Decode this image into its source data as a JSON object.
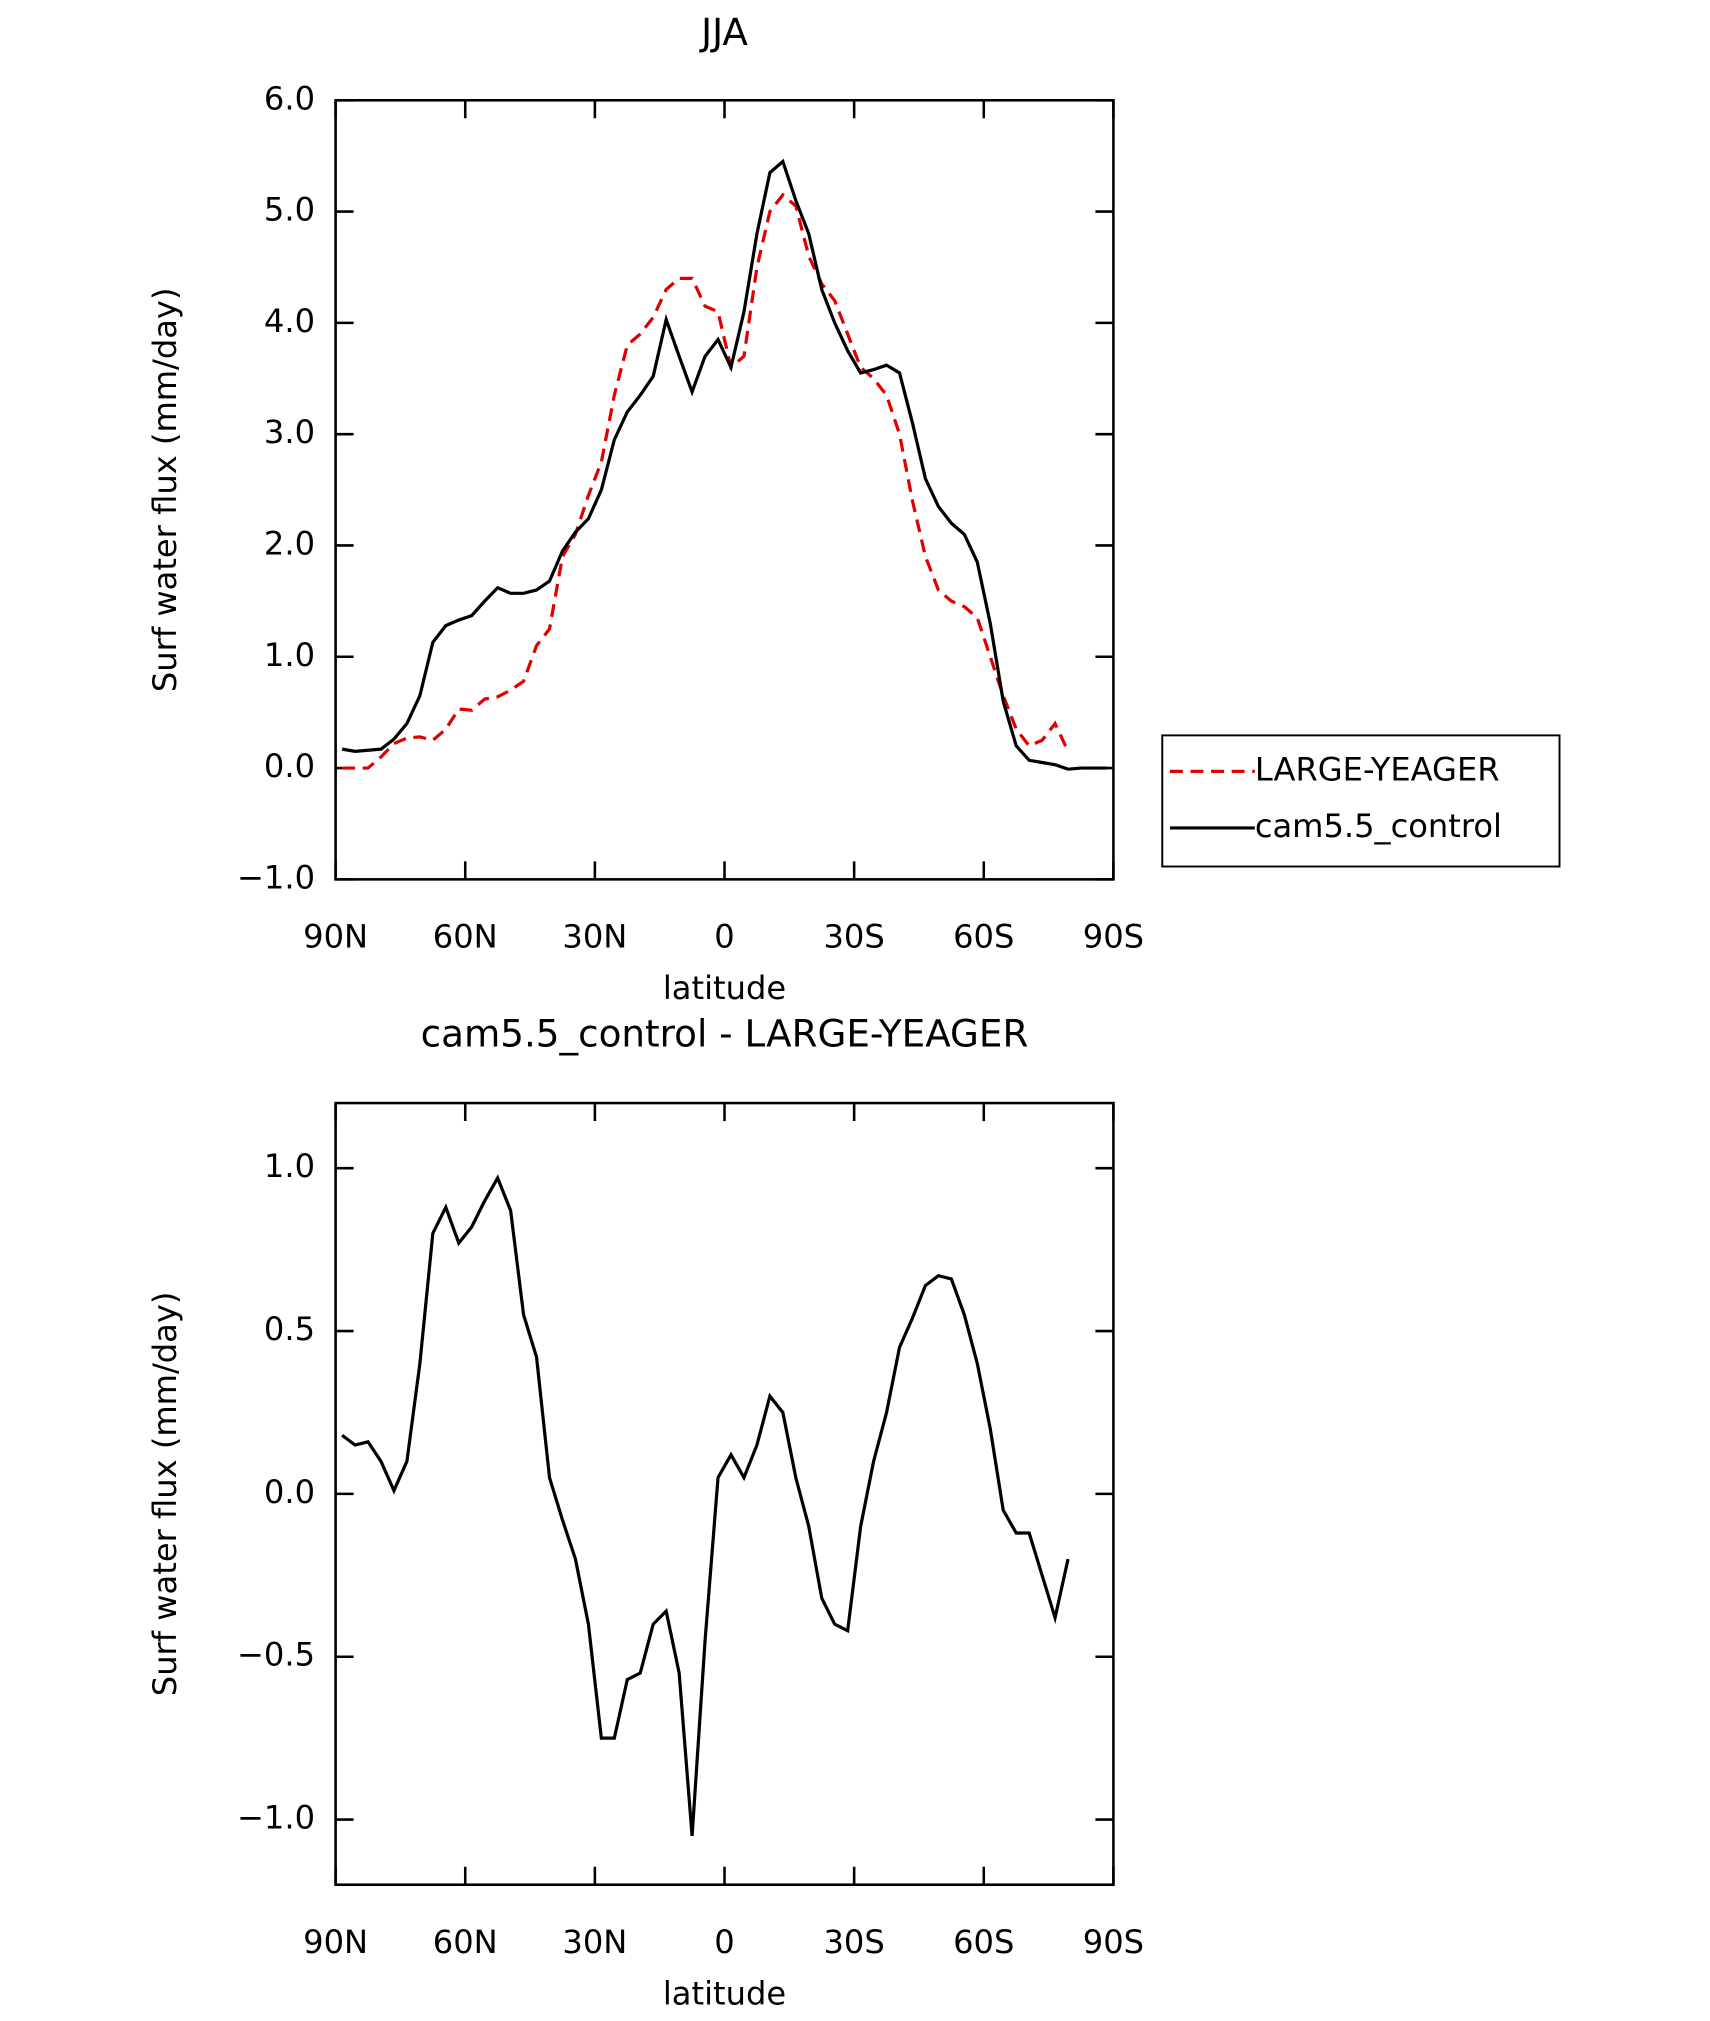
{
  "chart_data": [
    {
      "type": "line",
      "title": "JJA",
      "xlabel": "latitude",
      "ylabel": "Surf water flux (mm/day)",
      "x": [
        88.5,
        85.5,
        82.5,
        79.5,
        76.5,
        73.5,
        70.5,
        67.5,
        64.5,
        61.5,
        58.5,
        55.5,
        52.5,
        49.5,
        46.5,
        43.5,
        40.5,
        37.5,
        34.5,
        31.5,
        28.5,
        25.5,
        22.5,
        19.5,
        16.5,
        13.5,
        10.5,
        7.5,
        4.5,
        1.5,
        -1.5,
        -4.5,
        -7.5,
        -10.5,
        -13.5,
        -16.5,
        -19.5,
        -22.5,
        -25.5,
        -28.5,
        -31.5,
        -34.5,
        -37.5,
        -40.5,
        -43.5,
        -46.5,
        -49.5,
        -52.5,
        -55.5,
        -58.5,
        -61.5,
        -64.5,
        -67.5,
        -70.5,
        -73.5,
        -76.5,
        -79.5,
        -82.5,
        -85.5,
        -88.5
      ],
      "series": [
        {
          "name": "LARGE-YEAGER",
          "color": "#e00000",
          "style": "dashed",
          "values": [
            0.0,
            0.0,
            0.0,
            0.1,
            0.22,
            0.27,
            0.28,
            0.25,
            0.35,
            0.53,
            0.52,
            0.62,
            0.64,
            0.7,
            0.78,
            1.1,
            1.25,
            1.9,
            2.1,
            2.45,
            2.75,
            3.35,
            3.8,
            3.9,
            4.05,
            4.3,
            4.4,
            4.4,
            4.15,
            4.1,
            3.6,
            3.7,
            4.5,
            5.0,
            5.15,
            5.05,
            4.6,
            4.35,
            4.2,
            3.9,
            3.6,
            3.5,
            3.35,
            3.0,
            2.4,
            1.9,
            1.6,
            1.5,
            1.45,
            1.35,
            1.0,
            0.65,
            0.35,
            0.2,
            0.25,
            0.4,
            0.15,
            null,
            null,
            null
          ]
        },
        {
          "name": "cam5.5_control",
          "color": "#000000",
          "style": "solid",
          "values": [
            0.17,
            0.15,
            0.16,
            0.17,
            0.26,
            0.4,
            0.65,
            1.13,
            1.28,
            1.33,
            1.37,
            1.5,
            1.62,
            1.57,
            1.57,
            1.6,
            1.68,
            1.95,
            2.12,
            2.24,
            2.5,
            2.95,
            3.2,
            3.35,
            3.52,
            4.03,
            3.7,
            3.38,
            3.7,
            3.85,
            3.6,
            4.1,
            4.8,
            5.35,
            5.45,
            5.1,
            4.8,
            4.3,
            4.0,
            3.75,
            3.55,
            3.58,
            3.62,
            3.55,
            3.1,
            2.6,
            2.35,
            2.2,
            2.1,
            1.85,
            1.3,
            0.6,
            0.2,
            0.07,
            0.05,
            0.03,
            -0.01,
            0.0,
            0.0,
            0.0
          ]
        }
      ],
      "xlim": [
        90,
        -90
      ],
      "xticks": [
        {
          "value": 90,
          "label": "90N"
        },
        {
          "value": 60,
          "label": "60N"
        },
        {
          "value": 30,
          "label": "30N"
        },
        0,
        {
          "value": -30,
          "label": "30S"
        },
        {
          "value": -60,
          "label": "60S"
        },
        {
          "value": -90,
          "label": "90S"
        }
      ],
      "ylim": [
        -1,
        6
      ],
      "yticks": [
        {
          "value": -1,
          "label": "−1.0"
        },
        {
          "value": 0,
          "label": "0.0"
        },
        {
          "value": 1,
          "label": "1.0"
        },
        {
          "value": 2,
          "label": "2.0"
        },
        {
          "value": 3,
          "label": "3.0"
        },
        {
          "value": 4,
          "label": "4.0"
        },
        {
          "value": 5,
          "label": "5.0"
        },
        {
          "value": 6,
          "label": "6.0"
        }
      ],
      "legend": "right"
    },
    {
      "type": "line",
      "title": "cam5.5_control - LARGE-YEAGER",
      "xlabel": "latitude",
      "ylabel": "Surf water flux (mm/day)",
      "x": [
        88.5,
        85.5,
        82.5,
        79.5,
        76.5,
        73.5,
        70.5,
        67.5,
        64.5,
        61.5,
        58.5,
        55.5,
        52.5,
        49.5,
        46.5,
        43.5,
        40.5,
        37.5,
        34.5,
        31.5,
        28.5,
        25.5,
        22.5,
        19.5,
        16.5,
        13.5,
        10.5,
        7.5,
        4.5,
        1.5,
        -1.5,
        -4.5,
        -7.5,
        -10.5,
        -13.5,
        -16.5,
        -19.5,
        -22.5,
        -25.5,
        -28.5,
        -31.5,
        -34.5,
        -37.5,
        -40.5,
        -43.5,
        -46.5,
        -49.5,
        -52.5,
        -55.5,
        -58.5,
        -61.5,
        -64.5,
        -67.5,
        -70.5,
        -73.5,
        -76.5,
        -79.5,
        -82.5,
        -85.5,
        -88.5
      ],
      "color": "#000000",
      "values": [
        0.18,
        0.15,
        0.16,
        0.1,
        0.01,
        0.1,
        0.4,
        0.8,
        0.88,
        0.77,
        0.82,
        0.9,
        0.97,
        0.87,
        0.55,
        0.42,
        0.05,
        -0.08,
        -0.2,
        -0.4,
        -0.75,
        -0.75,
        -0.57,
        -0.55,
        -0.4,
        -0.36,
        -0.55,
        -1.05,
        -0.45,
        0.05,
        0.12,
        0.05,
        0.15,
        0.3,
        0.25,
        0.05,
        -0.1,
        -0.32,
        -0.4,
        -0.42,
        -0.1,
        0.1,
        0.25,
        0.45,
        0.54,
        0.64,
        0.67,
        0.66,
        0.55,
        0.4,
        0.2,
        -0.05,
        -0.12,
        -0.12,
        -0.25,
        -0.38,
        -0.2,
        null,
        null,
        null
      ],
      "xlim": [
        90,
        -90
      ],
      "xticks": [
        {
          "value": 90,
          "label": "90N"
        },
        {
          "value": 60,
          "label": "60N"
        },
        {
          "value": 30,
          "label": "30N"
        },
        0,
        {
          "value": -30,
          "label": "30S"
        },
        {
          "value": -60,
          "label": "60S"
        },
        {
          "value": -90,
          "label": "90S"
        }
      ],
      "ylim": [
        -1.2,
        1.2
      ],
      "yticks": [
        {
          "value": -1,
          "label": "−1.0"
        },
        {
          "value": -0.5,
          "label": "−0.5"
        },
        {
          "value": 0,
          "label": "0.0"
        },
        {
          "value": 0.5,
          "label": "0.5"
        },
        {
          "value": 1,
          "label": "1.0"
        }
      ]
    }
  ]
}
